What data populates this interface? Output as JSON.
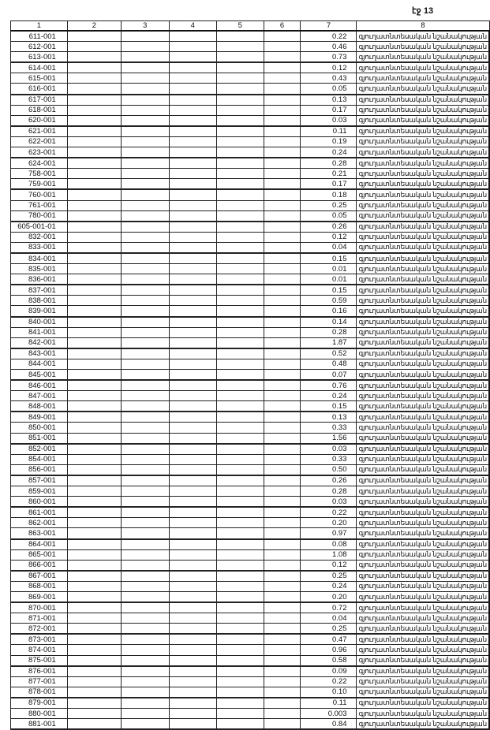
{
  "page_label": "էջ 13",
  "columns": [
    "1",
    "2",
    "3",
    "4",
    "5",
    "6",
    "7",
    "8"
  ],
  "rows": [
    [
      "611-001",
      "0.22"
    ],
    [
      "612-001",
      "0.46"
    ],
    [
      "613-001",
      "0.73"
    ],
    [
      "614-001",
      "0.12"
    ],
    [
      "615-001",
      "0.43"
    ],
    [
      "616-001",
      "0.05"
    ],
    [
      "617-001",
      "0.13"
    ],
    [
      "618-001",
      "0.17"
    ],
    [
      "620-001",
      "0.03"
    ],
    [
      "621-001",
      "0.11"
    ],
    [
      "622-001",
      "0.19"
    ],
    [
      "623-001",
      "0.24"
    ],
    [
      "624-001",
      "0.28"
    ],
    [
      "758-001",
      "0.21"
    ],
    [
      "759-001",
      "0.17"
    ],
    [
      "760-001",
      "0.18"
    ],
    [
      "761-001",
      "0.25"
    ],
    [
      "780-001",
      "0.05"
    ],
    [
      "605-001-01",
      "0.26"
    ],
    [
      "832-001",
      "0.12"
    ],
    [
      "833-001",
      "0.04"
    ],
    [
      "834-001",
      "0.15"
    ],
    [
      "835-001",
      "0.01"
    ],
    [
      "836-001",
      "0.01"
    ],
    [
      "837-001",
      "0.15"
    ],
    [
      "838-001",
      "0.59"
    ],
    [
      "839-001",
      "0.16"
    ],
    [
      "840-001",
      "0.14"
    ],
    [
      "841-001",
      "0.28"
    ],
    [
      "842-001",
      "1.87"
    ],
    [
      "843-001",
      "0.52"
    ],
    [
      "844-001",
      "0.48"
    ],
    [
      "845-001",
      "0.07"
    ],
    [
      "846-001",
      "0.76"
    ],
    [
      "847-001",
      "0.24"
    ],
    [
      "848-001",
      "0.15"
    ],
    [
      "849-001",
      "0.13"
    ],
    [
      "850-001",
      "0.33"
    ],
    [
      "851-001",
      "1.56"
    ],
    [
      "852-001",
      "0.03"
    ],
    [
      "854-001",
      "0.33"
    ],
    [
      "856-001",
      "0.50"
    ],
    [
      "857-001",
      "0.26"
    ],
    [
      "859-001",
      "0.28"
    ],
    [
      "860-001",
      "0.03"
    ],
    [
      "861-001",
      "0.22"
    ],
    [
      "862-001",
      "0.20"
    ],
    [
      "863-001",
      "0.97"
    ],
    [
      "864-001",
      "0.08"
    ],
    [
      "865-001",
      "1.08"
    ],
    [
      "866-001",
      "0.12"
    ],
    [
      "867-001",
      "0.25"
    ],
    [
      "868-001",
      "0.24"
    ],
    [
      "869-001",
      "0.20"
    ],
    [
      "870-001",
      "0.72"
    ],
    [
      "871-001",
      "0.04"
    ],
    [
      "872-001",
      "0.25"
    ],
    [
      "873-001",
      "0.47"
    ],
    [
      "874-001",
      "0.96"
    ],
    [
      "875-001",
      "0.58"
    ],
    [
      "876-001",
      "0.09"
    ],
    [
      "877-001",
      "0.22"
    ],
    [
      "878-001",
      "0.10"
    ],
    [
      "879-001",
      "0.11"
    ],
    [
      "880-001",
      "0.003"
    ],
    [
      "881-001",
      "0.84"
    ]
  ],
  "row_category": "գյուղատնտեսական նշանակության"
}
